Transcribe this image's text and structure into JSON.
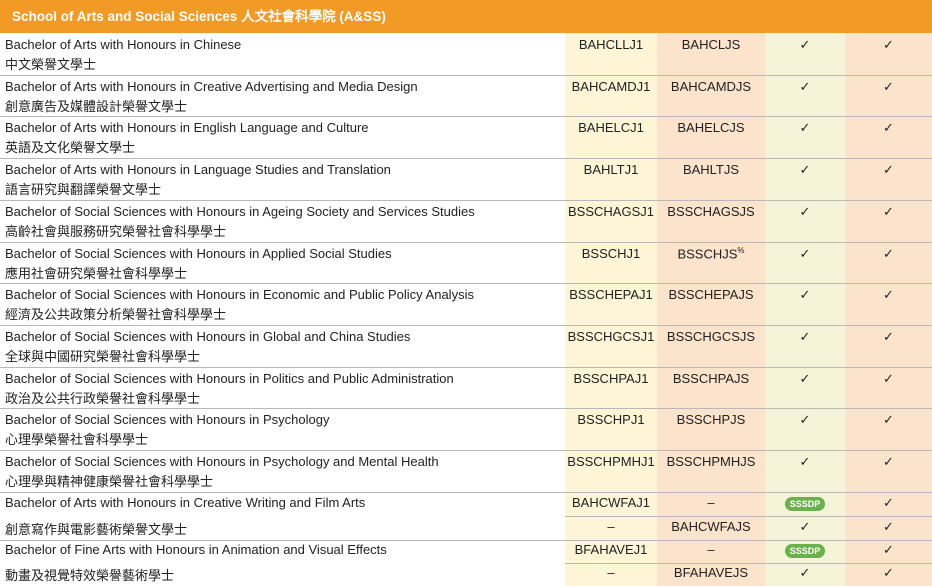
{
  "header": {
    "title": "School of Arts and Social Sciences 人文社會科學院 (A&SS)"
  },
  "rows": [
    {
      "en": "Bachelor of Arts with Honours in Chinese",
      "zh": "中文榮譽文學士",
      "lines": [
        [
          "BAHCLLJ1",
          "BAHCLJS",
          "✓",
          "✓"
        ]
      ]
    },
    {
      "en": "Bachelor of Arts with Honours in Creative Advertising and Media Design",
      "zh": "創意廣告及媒體設計榮譽文學士",
      "lines": [
        [
          "BAHCAMDJ1",
          "BAHCAMDJS",
          "✓",
          "✓"
        ]
      ]
    },
    {
      "en": "Bachelor of Arts with Honours in English Language and Culture",
      "zh": "英語及文化榮譽文學士",
      "lines": [
        [
          "BAHELCJ1",
          "BAHELCJS",
          "✓",
          "✓"
        ]
      ]
    },
    {
      "en": "Bachelor of Arts with Honours in Language Studies and Translation",
      "zh": "語言研究與翻譯榮譽文學士",
      "lines": [
        [
          "BAHLTJ1",
          "BAHLTJS",
          "✓",
          "✓"
        ]
      ]
    },
    {
      "en": "Bachelor of Social Sciences with Honours in Ageing Society and Services Studies",
      "zh": "高齡社會與服務研究榮譽社會科學學士",
      "lines": [
        [
          "BSSCHAGSJ1",
          "BSSCHAGSJS",
          "✓",
          "✓"
        ]
      ]
    },
    {
      "en": "Bachelor of Social Sciences with Honours in Applied Social Studies",
      "zh": "應用社會研究榮譽社會科學學士",
      "lines": [
        [
          "BSSCHJ1",
          "BSSCHJS",
          "✓",
          "✓"
        ]
      ],
      "sup": "%"
    },
    {
      "en": "Bachelor of Social Sciences with Honours in Economic and Public Policy Analysis",
      "zh": "經濟及公共政策分析榮譽社會科學學士",
      "lines": [
        [
          "BSSCHEPAJ1",
          "BSSCHEPAJS",
          "✓",
          "✓"
        ]
      ]
    },
    {
      "en": "Bachelor of Social Sciences with Honours in Global and China Studies",
      "zh": "全球與中國研究榮譽社會科學學士",
      "lines": [
        [
          "BSSCHGCSJ1",
          "BSSCHGCSJS",
          "✓",
          "✓"
        ]
      ]
    },
    {
      "en": "Bachelor of Social Sciences with Honours in Politics and Public Administration",
      "zh": "政治及公共行政榮譽社會科學學士",
      "lines": [
        [
          "BSSCHPAJ1",
          "BSSCHPAJS",
          "✓",
          "✓"
        ]
      ]
    },
    {
      "en": "Bachelor of Social Sciences with Honours in Psychology",
      "zh": "心理學榮譽社會科學學士",
      "lines": [
        [
          "BSSCHPJ1",
          "BSSCHPJS",
          "✓",
          "✓"
        ]
      ]
    },
    {
      "en": "Bachelor of Social Sciences with Honours in Psychology and Mental Health",
      "zh": "心理學與精神健康榮譽社會科學學士",
      "lines": [
        [
          "BSSCHPMHJ1",
          "BSSCHPMHJS",
          "✓",
          "✓"
        ]
      ]
    },
    {
      "en": "Bachelor of Arts with Honours in Creative Writing and Film Arts",
      "zh": "創意寫作與電影藝術榮譽文學士",
      "lines": [
        [
          "BAHCWFAJ1",
          "–",
          "SSSDP",
          "✓"
        ],
        [
          "–",
          "BAHCWFAJS",
          "✓",
          "✓"
        ]
      ]
    },
    {
      "en": "Bachelor of Fine Arts with Honours in Animation and Visual Effects",
      "zh": "動畫及視覺特效榮譽藝術學士",
      "lines": [
        [
          "BFAHAVEJ1",
          "–",
          "SSSDP",
          "✓"
        ],
        [
          "–",
          "BFAHAVEJS",
          "✓",
          "✓"
        ]
      ]
    }
  ]
}
